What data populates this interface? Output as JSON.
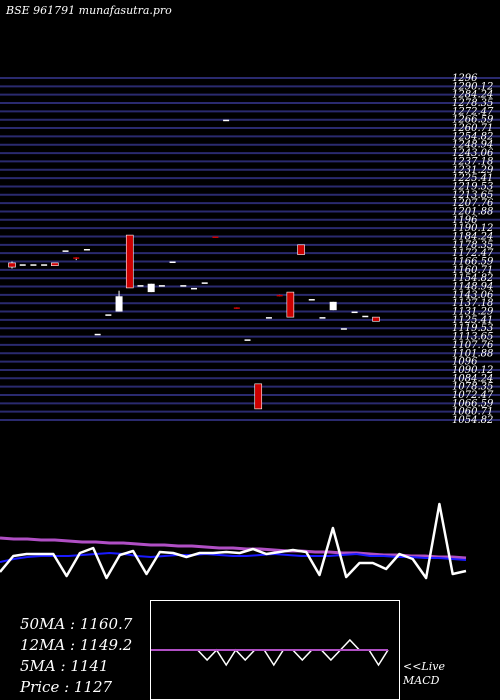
{
  "title": "BSE 961791 munafasutra.pro",
  "colors": {
    "background": "#000000",
    "grid": "#2a2a6e",
    "up_candle": "#ffffff",
    "down_candle": "#cc0000",
    "ma_long": "#b04fc4",
    "ma_short": "#1a1aff",
    "price_line": "#ffffff",
    "macd_signal": "#b04fc4"
  },
  "chart_data": [
    {
      "type": "candlestick",
      "ylim": [
        1050.0,
        1296.0
      ],
      "y_tick_labels": [
        "1296",
        "1290.12",
        "1284.24",
        "1278.35",
        "1272.47",
        "1266.59",
        "1260.71",
        "1254.82",
        "1248.94",
        "1243.06",
        "1237.18",
        "1231.29",
        "1225.41",
        "1219.53",
        "1213.65",
        "1207.76",
        "1201.88",
        "1196",
        "1190.12",
        "1184.24",
        "1178.35",
        "1172.47",
        "1166.59",
        "1160.71",
        "1154.82",
        "1148.94",
        "1143.06",
        "1137.18",
        "1131.29",
        "1125.41",
        "1119.53",
        "1113.65",
        "1107.76",
        "1101.88",
        "1096",
        "1090.12",
        "1084.24",
        "1078.35",
        "1072.47",
        "1066.59",
        "1060.71",
        "1054.82"
      ],
      "candles": [
        {
          "o": 1163,
          "c": 1160,
          "h": 1164,
          "l": 1159
        },
        {
          "o": 1162,
          "c": 1162,
          "h": 1162,
          "l": 1162
        },
        {
          "o": 1162,
          "c": 1162,
          "h": 1162,
          "l": 1162
        },
        {
          "o": 1162,
          "c": 1162,
          "h": 1162,
          "l": 1162
        },
        {
          "o": 1163,
          "c": 1161,
          "h": 1163,
          "l": 1161
        },
        {
          "o": 1172,
          "c": 1172,
          "h": 1172,
          "l": 1172
        },
        {
          "o": 1167,
          "c": 1166,
          "h": 1167,
          "l": 1165
        },
        {
          "o": 1173,
          "c": 1173,
          "h": 1173,
          "l": 1173
        },
        {
          "o": 1112,
          "c": 1112,
          "h": 1112,
          "l": 1112
        },
        {
          "o": 1126,
          "c": 1126,
          "h": 1126,
          "l": 1126
        },
        {
          "o": 1128,
          "c": 1139,
          "h": 1143,
          "l": 1128
        },
        {
          "o": 1183,
          "c": 1145,
          "h": 1183,
          "l": 1145
        },
        {
          "o": 1147,
          "c": 1147,
          "h": 1147,
          "l": 1147
        },
        {
          "o": 1142,
          "c": 1148,
          "h": 1148,
          "l": 1142
        },
        {
          "o": 1147,
          "c": 1147,
          "h": 1147,
          "l": 1147
        },
        {
          "o": 1164,
          "c": 1164,
          "h": 1164,
          "l": 1164
        },
        {
          "o": 1147,
          "c": 1147,
          "h": 1147,
          "l": 1147
        },
        {
          "o": 1145,
          "c": 1145,
          "h": 1145,
          "l": 1145
        },
        {
          "o": 1149,
          "c": 1149,
          "h": 1149,
          "l": 1149
        },
        {
          "o": 1182,
          "c": 1181,
          "h": 1182,
          "l": 1181
        },
        {
          "o": 1266,
          "c": 1266,
          "h": 1266,
          "l": 1266
        },
        {
          "o": 1131,
          "c": 1130,
          "h": 1131,
          "l": 1130
        },
        {
          "o": 1108,
          "c": 1108,
          "h": 1108,
          "l": 1108
        },
        {
          "o": 1076,
          "c": 1058,
          "h": 1076,
          "l": 1058
        },
        {
          "o": 1124,
          "c": 1124,
          "h": 1124,
          "l": 1124
        },
        {
          "o": 1140,
          "c": 1139,
          "h": 1140,
          "l": 1139
        },
        {
          "o": 1142,
          "c": 1124,
          "h": 1142,
          "l": 1124
        },
        {
          "o": 1176,
          "c": 1169,
          "h": 1176,
          "l": 1169
        },
        {
          "o": 1137,
          "c": 1137,
          "h": 1137,
          "l": 1137
        },
        {
          "o": 1124,
          "c": 1124,
          "h": 1124,
          "l": 1124
        },
        {
          "o": 1129,
          "c": 1135,
          "h": 1135,
          "l": 1129
        },
        {
          "o": 1116,
          "c": 1116,
          "h": 1116,
          "l": 1116
        },
        {
          "o": 1128,
          "c": 1128,
          "h": 1128,
          "l": 1128
        },
        {
          "o": 1125,
          "c": 1125,
          "h": 1125,
          "l": 1125
        },
        {
          "o": 1124,
          "c": 1121,
          "h": 1124,
          "l": 1121
        }
      ]
    },
    {
      "type": "line",
      "ylim": [
        0,
        100
      ],
      "series": [
        {
          "name": "",
          "role": "ma_long",
          "values": [
            62,
            61,
            61,
            60,
            60,
            59,
            58,
            58,
            57,
            57,
            56,
            55,
            55,
            54,
            54,
            53,
            52,
            52,
            51,
            51,
            50,
            49,
            49,
            48,
            48,
            47,
            47,
            46,
            45,
            45,
            44,
            44,
            43,
            43,
            42
          ]
        },
        {
          "name": "",
          "role": "ma_short",
          "values": [
            38,
            41,
            43,
            44,
            44,
            44,
            45,
            46,
            47,
            46,
            44,
            43,
            44,
            45,
            45,
            46,
            45,
            44,
            44,
            45,
            46,
            45,
            44,
            44,
            44,
            45,
            46,
            44,
            44,
            43,
            43,
            42,
            42,
            41,
            40
          ]
        },
        {
          "name": "",
          "role": "price_line",
          "values": [
            28,
            44,
            46,
            46,
            46,
            24,
            47,
            52,
            22,
            45,
            49,
            26,
            48,
            47,
            43,
            47,
            47,
            48,
            47,
            51,
            46,
            48,
            50,
            48,
            25,
            72,
            23,
            37,
            37,
            31,
            46,
            41,
            22,
            96,
            26,
            29
          ]
        }
      ]
    },
    {
      "type": "line",
      "ylim": [
        -10,
        10
      ],
      "series": [
        {
          "name": "",
          "role": "macd",
          "values": [
            0,
            0,
            0,
            0,
            0,
            0,
            -2,
            0,
            -3,
            0,
            -2,
            0,
            0,
            -3,
            0,
            0,
            -2,
            0,
            0,
            -2,
            0,
            2,
            0,
            0,
            -3,
            0
          ]
        },
        {
          "name": "",
          "role": "macd_signal",
          "values": [
            0,
            0,
            0,
            0,
            0,
            0,
            0,
            0,
            0,
            0,
            0,
            0,
            0,
            0,
            0,
            0,
            0,
            0,
            0,
            0,
            0,
            0,
            0,
            0,
            0,
            0
          ]
        }
      ]
    }
  ],
  "stats": {
    "ma50": "50MA : 1160.7",
    "ma12": "12MA : 1149.2",
    "ma5": "5MA : 1141",
    "price": "Price   : 1127"
  },
  "macd_label": {
    "line1": "<<Live",
    "line2": "MACD"
  }
}
